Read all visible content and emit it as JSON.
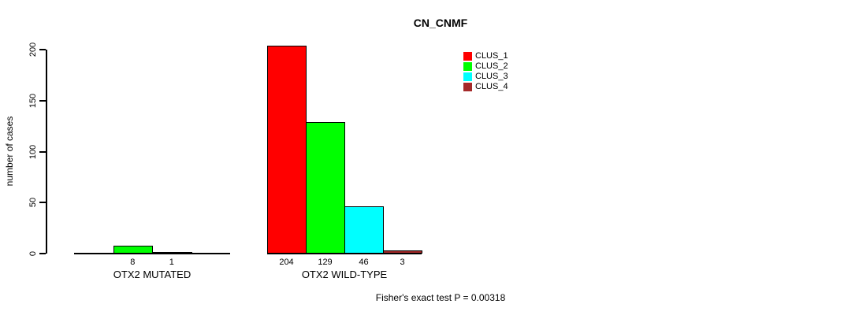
{
  "figure": {
    "background": "#ffffff",
    "axis_color": "#000000"
  },
  "chart_data": {
    "type": "bar",
    "title": "CN_CNMF",
    "ylabel": "number of cases",
    "xlabel": "",
    "ylim": [
      0,
      200
    ],
    "yticks": [
      0,
      50,
      100,
      150,
      200
    ],
    "grid": false,
    "categories": [
      "OTX2 MUTATED",
      "OTX2 WILD-TYPE"
    ],
    "series": [
      {
        "name": "CLUS_1",
        "color": "#FF0000",
        "values": [
          0,
          204
        ]
      },
      {
        "name": "CLUS_2",
        "color": "#00FF00",
        "values": [
          8,
          129
        ]
      },
      {
        "name": "CLUS_3",
        "color": "#00FFFF",
        "values": [
          1,
          46
        ]
      },
      {
        "name": "CLUS_4",
        "color": "#A52A2A",
        "values": [
          0,
          3
        ]
      }
    ],
    "bar_value_labels": [
      [
        "",
        "8",
        "1",
        ""
      ],
      [
        "204",
        "129",
        "46",
        "3"
      ]
    ],
    "legend_position": "top-center-right",
    "annotation": "Fisher's exact test P = 0.00318"
  }
}
